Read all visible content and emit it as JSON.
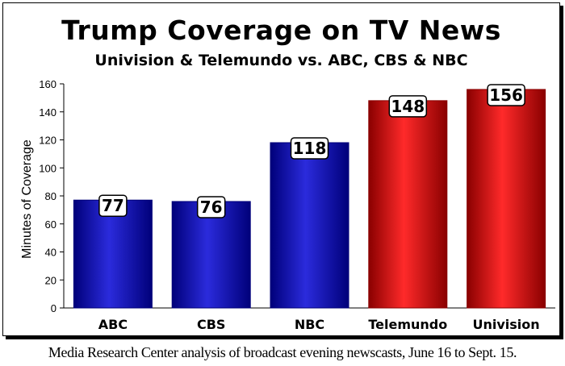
{
  "chart_data": {
    "type": "bar",
    "title": "Trump Coverage on TV News",
    "subtitle": "Univision & Telemundo vs. ABC, CBS & NBC",
    "ylabel": "Minutes of Coverage",
    "xlabel": "",
    "ylim": [
      0,
      160
    ],
    "yticks": [
      0,
      20,
      40,
      60,
      80,
      100,
      120,
      140,
      160
    ],
    "categories": [
      "ABC",
      "CBS",
      "NBC",
      "Telemundo",
      "Univision"
    ],
    "values": [
      77,
      76,
      118,
      148,
      156
    ],
    "data_labels": [
      "77",
      "76",
      "118",
      "148",
      "156"
    ],
    "bar_colors": [
      "blue",
      "blue",
      "blue",
      "red",
      "red"
    ],
    "grid": false,
    "legend": "none"
  },
  "colors": {
    "blue_edge": "#00007a",
    "blue_mid": "#2b2bdc",
    "red_edge": "#8a0000",
    "red_mid": "#ff2a2a"
  },
  "caption": "Media Research Center analysis of broadcast evening newscasts, June 16 to Sept. 15."
}
